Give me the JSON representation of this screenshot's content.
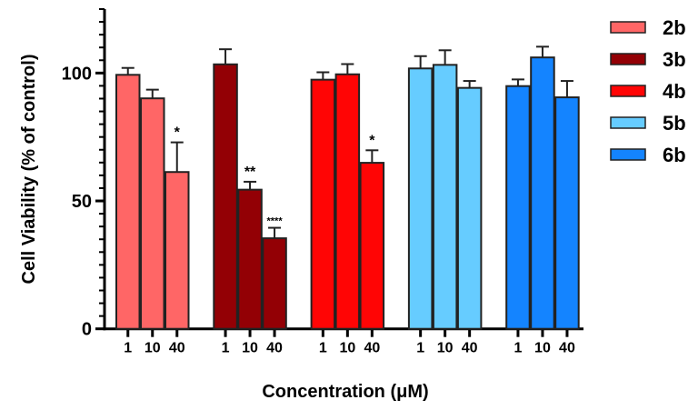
{
  "chart_data": {
    "type": "bar",
    "xlabel": "Concentration (μM)",
    "ylabel": "Cell Viability (% of control)",
    "ylim": [
      0,
      125
    ],
    "yticks": [
      "0",
      "50",
      "100"
    ],
    "grid": false,
    "legend_position": "right",
    "categories": [
      "1",
      "10",
      "40"
    ],
    "series": [
      {
        "name": "2b",
        "color": "#FF6666",
        "values": [
          99.3,
          90.1,
          61.3
        ],
        "errors": [
          2.7,
          3.4,
          11.6
        ],
        "significance": [
          "",
          "",
          "*"
        ]
      },
      {
        "name": "3b",
        "color": "#930005",
        "values": [
          103.4,
          54.4,
          35.4
        ],
        "errors": [
          5.9,
          3.1,
          4.1
        ],
        "significance": [
          "",
          "**",
          "****"
        ]
      },
      {
        "name": "4b",
        "color": "#FF0505",
        "values": [
          97.4,
          99.5,
          64.9
        ],
        "errors": [
          2.9,
          4.0,
          4.9
        ],
        "significance": [
          "",
          "",
          "*"
        ]
      },
      {
        "name": "5b",
        "color": "#66CCFF",
        "values": [
          101.8,
          103.2,
          94.2
        ],
        "errors": [
          4.8,
          5.7,
          2.7
        ],
        "significance": [
          "",
          "",
          ""
        ]
      },
      {
        "name": "6b",
        "color": "#1484FF",
        "values": [
          94.9,
          106.1,
          90.5
        ],
        "errors": [
          2.6,
          4.2,
          6.4
        ],
        "significance": [
          "",
          "",
          ""
        ]
      }
    ]
  }
}
